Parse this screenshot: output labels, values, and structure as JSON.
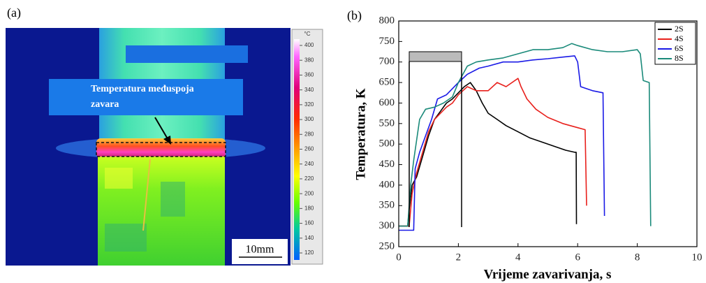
{
  "panel_a": {
    "label": "(a)",
    "annotation_lines": [
      "Temperatura međuspoja",
      "zavara"
    ],
    "scale_bar": "10mm",
    "colorbar": {
      "unit": "°C",
      "ticks": [
        400,
        380,
        360,
        340,
        320,
        300,
        280,
        260,
        240,
        220,
        200,
        180,
        160,
        140,
        120
      ]
    }
  },
  "chart_data": {
    "type": "line",
    "label": "(b)",
    "x_label": "Vrijeme zavarivanja, s",
    "y_label": "Temperatura, K",
    "xlim": [
      0,
      10
    ],
    "ylim": [
      250,
      800
    ],
    "xticks": [
      0,
      2,
      4,
      6,
      8,
      10
    ],
    "yticks": [
      250,
      300,
      350,
      400,
      450,
      500,
      550,
      600,
      650,
      700,
      750,
      800
    ],
    "legend": "upper right",
    "series": [
      {
        "name": "2S",
        "color": "#000000",
        "x": [
          0,
          0.3,
          0.35,
          0.45,
          0.6,
          0.8,
          1.0,
          1.2,
          1.4,
          1.6,
          1.8,
          2.0,
          2.2,
          2.4,
          2.6,
          2.8,
          3.0,
          3.3,
          3.6,
          4.0,
          4.4,
          4.8,
          5.2,
          5.6,
          5.9,
          5.95,
          5.96
        ],
        "values": [
          300,
          300,
          340,
          400,
          420,
          470,
          520,
          560,
          580,
          600,
          610,
          625,
          640,
          650,
          630,
          600,
          575,
          560,
          545,
          530,
          515,
          505,
          495,
          485,
          480,
          480,
          305
        ]
      },
      {
        "name": "4S",
        "color": "#e8201c",
        "x": [
          0,
          0.35,
          0.45,
          0.6,
          0.8,
          1.0,
          1.2,
          1.4,
          1.6,
          1.8,
          2.0,
          2.3,
          2.6,
          3.0,
          3.3,
          3.6,
          4.0,
          4.1,
          4.3,
          4.6,
          5.0,
          5.5,
          6.0,
          6.25,
          6.3
        ],
        "values": [
          300,
          300,
          380,
          430,
          480,
          530,
          560,
          575,
          590,
          600,
          620,
          640,
          630,
          630,
          650,
          640,
          660,
          640,
          610,
          585,
          565,
          550,
          540,
          535,
          350
        ]
      },
      {
        "name": "6S",
        "color": "#1a1ae6",
        "x": [
          0,
          0.5,
          0.55,
          0.7,
          0.9,
          1.1,
          1.3,
          1.6,
          2.0,
          2.3,
          2.7,
          3.0,
          3.5,
          4.0,
          4.5,
          5.0,
          5.5,
          5.9,
          6.0,
          6.1,
          6.5,
          6.85,
          6.9
        ],
        "values": [
          290,
          290,
          440,
          480,
          520,
          560,
          610,
          620,
          650,
          670,
          685,
          690,
          700,
          700,
          705,
          708,
          712,
          715,
          700,
          640,
          630,
          625,
          325
        ]
      },
      {
        "name": "8S",
        "color": "#1a8a7a",
        "x": [
          0,
          0.3,
          0.4,
          0.5,
          0.7,
          0.9,
          1.2,
          1.5,
          1.8,
          2.0,
          2.3,
          2.6,
          3.0,
          3.5,
          4.0,
          4.5,
          5.0,
          5.5,
          5.8,
          6.0,
          6.5,
          7.0,
          7.5,
          8.0,
          8.1,
          8.2,
          8.4,
          8.45
        ],
        "values": [
          300,
          300,
          400,
          460,
          560,
          585,
          590,
          600,
          615,
          650,
          690,
          700,
          705,
          710,
          720,
          730,
          730,
          735,
          745,
          740,
          730,
          725,
          725,
          730,
          720,
          655,
          650,
          300
        ]
      }
    ]
  }
}
